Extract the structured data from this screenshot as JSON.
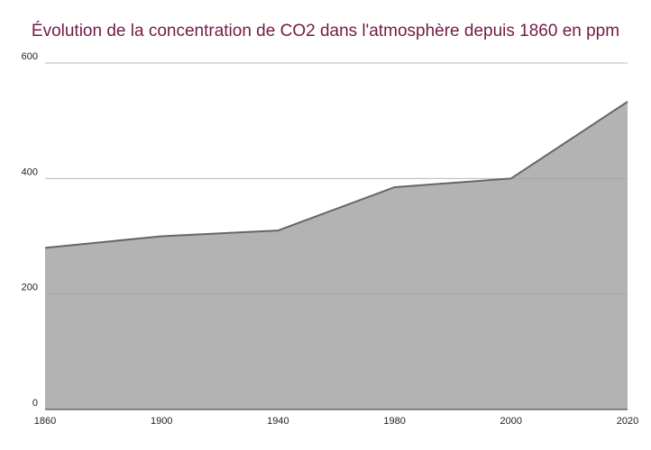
{
  "chart_data": {
    "type": "area",
    "title": "Évolution de la concentration de CO2 dans l'atmosphère depuis 1860 en ppm",
    "xlabel": "",
    "ylabel": "",
    "categories": [
      "1860",
      "1900",
      "1940",
      "1980",
      "2000",
      "2020"
    ],
    "values": [
      280,
      300,
      310,
      385,
      400,
      533
    ],
    "ylim": [
      0,
      600
    ],
    "yticks": [
      "0",
      "200",
      "400",
      "600"
    ],
    "grid": true,
    "legend": "none",
    "colors": {
      "fill": "#b3b3b3",
      "line": "#666666",
      "title": "#741b47",
      "grid": "#d9d9d9"
    }
  }
}
